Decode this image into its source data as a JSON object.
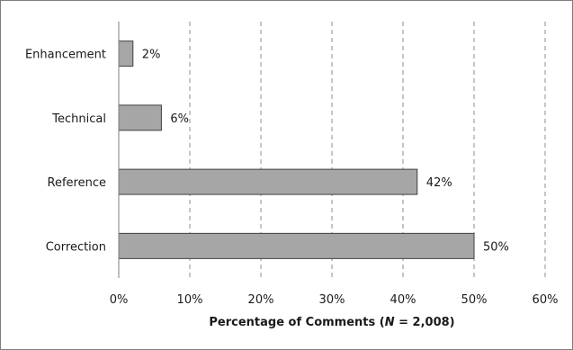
{
  "chart_data": {
    "type": "bar",
    "orientation": "horizontal",
    "categories": [
      "Enhancement",
      "Technical",
      "Reference",
      "Correction"
    ],
    "values": [
      2,
      6,
      42,
      50
    ],
    "data_labels": [
      "2%",
      "6%",
      "42%",
      "50%"
    ],
    "xlabel": {
      "prefix": "Percentage of Comments (",
      "italic": "N",
      "suffix": " = 2,008)"
    },
    "ylabel": "",
    "xlim": [
      0,
      60
    ],
    "xticks": [
      0,
      10,
      20,
      30,
      40,
      50,
      60
    ],
    "xtick_labels": [
      "0%",
      "10%",
      "20%",
      "30%",
      "40%",
      "50%",
      "60%"
    ],
    "grid": "vertical-dashed",
    "legend": "none",
    "colors": {
      "bar_fill": "#a6a6a6",
      "bar_stroke": "#404040",
      "grid": "#8c8c8c",
      "axis": "#7f7f7f",
      "frame": "#7f7f7f"
    }
  }
}
